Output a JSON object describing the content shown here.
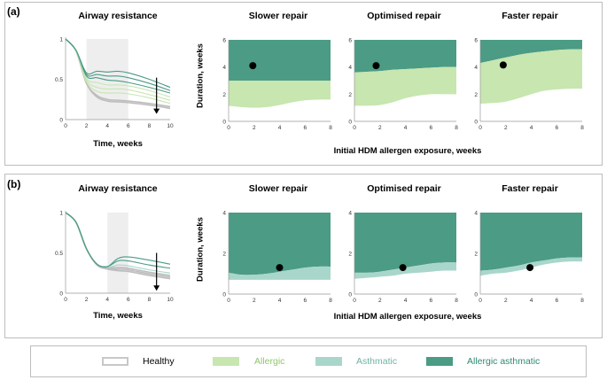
{
  "panels": [
    {
      "label": "(a)",
      "airway_title": "Airway resistance",
      "airway_xlabel": "Time, weeks",
      "heatmap_titles": [
        "Slower repair",
        "Optimised repair",
        "Faster repair"
      ],
      "ylabel": "Duration, weeks",
      "xlabel": "Initial HDM allergen exposure, weeks"
    },
    {
      "label": "(b)",
      "airway_title": "Airway resistance",
      "airway_xlabel": "Time, weeks",
      "heatmap_titles": [
        "Slower repair",
        "Optimised repair",
        "Faster repair"
      ],
      "ylabel": "Duration, weeks",
      "xlabel": "Initial HDM allergen exposure, weeks"
    }
  ],
  "legend": {
    "items": [
      {
        "label": "Healthy",
        "color": "#ffffff",
        "border": "#c8c8c8",
        "text_color": "#000000"
      },
      {
        "label": "Allergic",
        "color": "#c7e6b0",
        "border": "#c7e6b0",
        "text_color": "#8cc86a"
      },
      {
        "label": "Asthmatic",
        "color": "#a9d6cb",
        "border": "#a9d6cb",
        "text_color": "#6fb4a4"
      },
      {
        "label": "Allergic asthmatic",
        "color": "#4b9b85",
        "border": "#4b9b85",
        "text_color": "#2f8a73"
      }
    ]
  },
  "colors": {
    "allergic": "#c7e6b0",
    "asthmatic": "#a9d6cb",
    "allergic_asthmatic": "#4b9b85",
    "healthy_curve": "#bdbdbd",
    "shade": "#eeeeee",
    "frame": "#bdbdbd"
  },
  "chart_data": [
    {
      "id": "a-airway",
      "type": "line",
      "title": "Airway resistance",
      "xlabel": "Time, weeks",
      "ylabel": "",
      "xlim": [
        0,
        10
      ],
      "ylim": [
        0,
        1
      ],
      "xticks": [
        0,
        2,
        4,
        6,
        8,
        10
      ],
      "yticks": [
        0,
        0.5,
        1
      ],
      "xtick_labels": [
        "0",
        "2",
        "4",
        "6",
        "8",
        "10"
      ],
      "ytick_labels": [
        "0",
        "0.5",
        "1"
      ],
      "shaded_interval": [
        2,
        6
      ],
      "arrow": {
        "x": 8.7,
        "y_from": 0.52,
        "y_to": 0.07
      },
      "curves": [
        {
          "kind": "healthy",
          "points": [
            [
              0,
              1
            ],
            [
              1,
              0.85
            ],
            [
              2,
              0.45
            ],
            [
              3,
              0.28
            ],
            [
              4,
              0.23
            ],
            [
              5,
              0.22
            ],
            [
              6,
              0.21
            ],
            [
              8,
              0.18
            ],
            [
              10,
              0.14
            ]
          ]
        },
        {
          "kind": "healthy",
          "points": [
            [
              0,
              1
            ],
            [
              1,
              0.85
            ],
            [
              2,
              0.45
            ],
            [
              3,
              0.3
            ],
            [
              4,
              0.25
            ],
            [
              5,
              0.24
            ],
            [
              6,
              0.23
            ],
            [
              8,
              0.2
            ],
            [
              10,
              0.16
            ]
          ]
        },
        {
          "kind": "allergic",
          "points": [
            [
              0,
              1
            ],
            [
              1,
              0.85
            ],
            [
              2,
              0.47
            ],
            [
              3,
              0.35
            ],
            [
              4,
              0.33
            ],
            [
              5,
              0.33
            ],
            [
              6,
              0.32
            ],
            [
              8,
              0.27
            ],
            [
              10,
              0.2
            ]
          ]
        },
        {
          "kind": "allergic",
          "points": [
            [
              0,
              1
            ],
            [
              1,
              0.85
            ],
            [
              2,
              0.49
            ],
            [
              3,
              0.4
            ],
            [
              4,
              0.38
            ],
            [
              5,
              0.38
            ],
            [
              6,
              0.37
            ],
            [
              8,
              0.31
            ],
            [
              10,
              0.24
            ]
          ]
        },
        {
          "kind": "allergic",
          "points": [
            [
              0,
              1
            ],
            [
              1,
              0.85
            ],
            [
              2,
              0.51
            ],
            [
              3,
              0.46
            ],
            [
              4,
              0.43
            ],
            [
              5,
              0.43
            ],
            [
              6,
              0.42
            ],
            [
              8,
              0.36
            ],
            [
              10,
              0.28
            ]
          ]
        },
        {
          "kind": "allergic_asthmatic",
          "points": [
            [
              0,
              1
            ],
            [
              1,
              0.86
            ],
            [
              2,
              0.54
            ],
            [
              3,
              0.52
            ],
            [
              4,
              0.49
            ],
            [
              5,
              0.48
            ],
            [
              6,
              0.46
            ],
            [
              8,
              0.4
            ],
            [
              10,
              0.33
            ]
          ]
        },
        {
          "kind": "allergic_asthmatic",
          "points": [
            [
              0,
              1
            ],
            [
              1,
              0.86
            ],
            [
              2,
              0.56
            ],
            [
              3,
              0.56
            ],
            [
              4,
              0.54
            ],
            [
              5,
              0.54
            ],
            [
              6,
              0.52
            ],
            [
              8,
              0.45
            ],
            [
              10,
              0.36
            ]
          ]
        },
        {
          "kind": "allergic_asthmatic",
          "points": [
            [
              0,
              1
            ],
            [
              1,
              0.86
            ],
            [
              2,
              0.58
            ],
            [
              3,
              0.6
            ],
            [
              4,
              0.59
            ],
            [
              5,
              0.6
            ],
            [
              6,
              0.58
            ],
            [
              8,
              0.5
            ],
            [
              10,
              0.4
            ]
          ]
        }
      ]
    },
    {
      "id": "a-slower",
      "type": "area",
      "title": "Slower repair",
      "xlim": [
        0,
        8
      ],
      "ylim": [
        0,
        6
      ],
      "xticks": [
        0,
        2,
        4,
        6,
        8
      ],
      "yticks": [
        0,
        2,
        4,
        6
      ],
      "x": [
        0,
        1,
        2,
        3,
        4,
        5,
        6,
        7,
        8
      ],
      "boundary_low": [
        1.15,
        1.05,
        1.0,
        1.05,
        1.2,
        1.4,
        1.55,
        1.6,
        1.6
      ],
      "boundary_high": [
        3.0,
        3.0,
        3.0,
        3.0,
        3.0,
        3.0,
        3.0,
        3.0,
        3.0
      ],
      "regions_bottom_to_top": [
        "healthy",
        "allergic",
        "allergic_asthmatic"
      ],
      "marker": {
        "x": 1.9,
        "y": 4.1
      }
    },
    {
      "id": "a-optimised",
      "type": "area",
      "title": "Optimised repair",
      "xlim": [
        0,
        8
      ],
      "ylim": [
        0,
        6
      ],
      "xticks": [
        0,
        2,
        4,
        6,
        8
      ],
      "yticks": [
        0,
        2,
        4,
        6
      ],
      "x": [
        0,
        1,
        2,
        3,
        4,
        5,
        6,
        7,
        8
      ],
      "boundary_low": [
        1.15,
        1.15,
        1.2,
        1.4,
        1.7,
        1.9,
        2.0,
        2.0,
        2.0
      ],
      "boundary_high": [
        3.6,
        3.65,
        3.7,
        3.8,
        3.85,
        3.9,
        3.95,
        4.0,
        4.0
      ],
      "regions_bottom_to_top": [
        "healthy",
        "allergic",
        "allergic_asthmatic"
      ],
      "marker": {
        "x": 1.7,
        "y": 4.1
      }
    },
    {
      "id": "a-faster",
      "type": "area",
      "title": "Faster repair",
      "xlim": [
        0,
        8
      ],
      "ylim": [
        0,
        6
      ],
      "xticks": [
        0,
        2,
        4,
        6,
        8
      ],
      "yticks": [
        0,
        2,
        4,
        6
      ],
      "x": [
        0,
        1,
        2,
        3,
        4,
        5,
        6,
        7,
        8
      ],
      "boundary_low": [
        1.3,
        1.35,
        1.45,
        1.7,
        2.0,
        2.25,
        2.35,
        2.4,
        2.4
      ],
      "boundary_high": [
        4.3,
        4.5,
        4.7,
        4.9,
        5.05,
        5.15,
        5.25,
        5.3,
        5.3
      ],
      "regions_bottom_to_top": [
        "healthy",
        "allergic",
        "allergic_asthmatic"
      ],
      "marker": {
        "x": 1.8,
        "y": 4.15
      }
    },
    {
      "id": "b-airway",
      "type": "line",
      "title": "Airway resistance",
      "xlabel": "Time, weeks",
      "ylabel": "",
      "xlim": [
        0,
        10
      ],
      "ylim": [
        0,
        1
      ],
      "xticks": [
        0,
        2,
        4,
        6,
        8,
        10
      ],
      "yticks": [
        0,
        0.5,
        1
      ],
      "xtick_labels": [
        "0",
        "2",
        "4",
        "6",
        "8",
        "10"
      ],
      "ytick_labels": [
        "0",
        "0.5",
        "1"
      ],
      "shaded_interval": [
        4,
        6
      ],
      "arrow": {
        "x": 8.7,
        "y_from": 0.5,
        "y_to": 0.03
      },
      "curves": [
        {
          "kind": "healthy",
          "points": [
            [
              0,
              1
            ],
            [
              1,
              0.88
            ],
            [
              2,
              0.55
            ],
            [
              3,
              0.35
            ],
            [
              4,
              0.3
            ],
            [
              5,
              0.28
            ],
            [
              6,
              0.27
            ],
            [
              8,
              0.22
            ],
            [
              10,
              0.18
            ]
          ]
        },
        {
          "kind": "healthy",
          "points": [
            [
              0,
              1
            ],
            [
              1,
              0.88
            ],
            [
              2,
              0.55
            ],
            [
              3,
              0.36
            ],
            [
              4,
              0.31
            ],
            [
              5,
              0.3
            ],
            [
              6,
              0.29
            ],
            [
              8,
              0.24
            ],
            [
              10,
              0.2
            ]
          ]
        },
        {
          "kind": "healthy",
          "points": [
            [
              0,
              1
            ],
            [
              1,
              0.88
            ],
            [
              2,
              0.55
            ],
            [
              3,
              0.36
            ],
            [
              4,
              0.32
            ],
            [
              5,
              0.32
            ],
            [
              6,
              0.31
            ],
            [
              8,
              0.26
            ],
            [
              10,
              0.22
            ]
          ]
        },
        {
          "kind": "asthmatic",
          "points": [
            [
              0,
              1
            ],
            [
              1,
              0.88
            ],
            [
              2,
              0.55
            ],
            [
              3,
              0.36
            ],
            [
              4,
              0.32
            ],
            [
              5,
              0.35
            ],
            [
              6,
              0.34
            ],
            [
              8,
              0.29
            ],
            [
              10,
              0.25
            ]
          ]
        },
        {
          "kind": "allergic_asthmatic",
          "points": [
            [
              0,
              1
            ],
            [
              1,
              0.88
            ],
            [
              2,
              0.55
            ],
            [
              3,
              0.36
            ],
            [
              4,
              0.33
            ],
            [
              5,
              0.4
            ],
            [
              6,
              0.4
            ],
            [
              8,
              0.35
            ],
            [
              10,
              0.31
            ]
          ]
        },
        {
          "kind": "allergic_asthmatic",
          "points": [
            [
              0,
              1
            ],
            [
              1,
              0.88
            ],
            [
              2,
              0.55
            ],
            [
              3,
              0.36
            ],
            [
              4,
              0.33
            ],
            [
              5,
              0.43
            ],
            [
              6,
              0.45
            ],
            [
              8,
              0.41
            ],
            [
              10,
              0.36
            ]
          ]
        }
      ]
    },
    {
      "id": "b-slower",
      "type": "area",
      "title": "Slower repair",
      "xlim": [
        0,
        8
      ],
      "ylim": [
        0,
        4
      ],
      "xticks": [
        0,
        2,
        4,
        6,
        8
      ],
      "yticks": [
        0,
        2,
        4
      ],
      "x": [
        0,
        1,
        2,
        3,
        4,
        5,
        6,
        7,
        8
      ],
      "boundary_low": [
        0.7,
        0.7,
        0.7,
        0.7,
        0.7,
        0.7,
        0.7,
        0.7,
        0.7
      ],
      "boundary_high": [
        1.05,
        0.95,
        0.95,
        1.0,
        1.1,
        1.2,
        1.3,
        1.35,
        1.35
      ],
      "regions_bottom_to_top": [
        "healthy",
        "asthmatic",
        "allergic_asthmatic"
      ],
      "marker": {
        "x": 4.0,
        "y": 1.3
      }
    },
    {
      "id": "b-optimised",
      "type": "area",
      "title": "Optimised repair",
      "xlim": [
        0,
        8
      ],
      "ylim": [
        0,
        4
      ],
      "xticks": [
        0,
        2,
        4,
        6,
        8
      ],
      "yticks": [
        0,
        2,
        4
      ],
      "x": [
        0,
        1,
        2,
        3,
        4,
        5,
        6,
        7,
        8
      ],
      "boundary_low": [
        0.75,
        0.8,
        0.85,
        0.9,
        1.0,
        1.05,
        1.1,
        1.15,
        1.15
      ],
      "boundary_high": [
        1.05,
        1.05,
        1.1,
        1.2,
        1.3,
        1.4,
        1.5,
        1.55,
        1.55
      ],
      "regions_bottom_to_top": [
        "healthy",
        "asthmatic",
        "allergic_asthmatic"
      ],
      "marker": {
        "x": 3.8,
        "y": 1.3
      }
    },
    {
      "id": "b-faster",
      "type": "area",
      "title": "Faster repair",
      "xlim": [
        0,
        8
      ],
      "ylim": [
        0,
        4
      ],
      "xticks": [
        0,
        2,
        4,
        6,
        8
      ],
      "yticks": [
        0,
        2,
        4
      ],
      "x": [
        0,
        1,
        2,
        3,
        4,
        5,
        6,
        7,
        8
      ],
      "boundary_low": [
        0.9,
        1.0,
        1.05,
        1.15,
        1.3,
        1.45,
        1.55,
        1.6,
        1.6
      ],
      "boundary_high": [
        1.15,
        1.2,
        1.3,
        1.4,
        1.55,
        1.65,
        1.75,
        1.8,
        1.8
      ],
      "regions_bottom_to_top": [
        "healthy",
        "asthmatic",
        "allergic_asthmatic"
      ],
      "marker": {
        "x": 3.9,
        "y": 1.3
      }
    }
  ]
}
